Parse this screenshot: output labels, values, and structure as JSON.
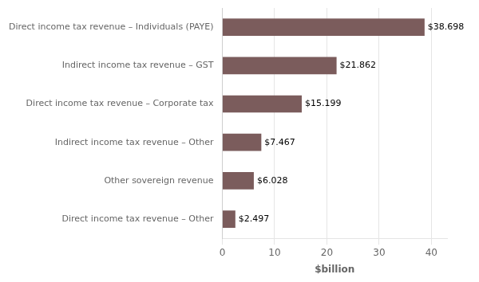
{
  "chart_data": {
    "type": "bar",
    "orientation": "horizontal",
    "categories": [
      "Direct income tax revenue – Other",
      "Other sovereign revenue",
      "Indirect income tax revenue – Other",
      "Direct income tax revenue – Corporate tax",
      "Indirect income tax revenue – GST",
      "Direct income tax revenue – Individuals (PAYE)"
    ],
    "values": [
      2.497,
      6.028,
      7.467,
      15.199,
      21.862,
      38.698
    ],
    "value_labels": [
      "$2.497",
      "$6.028",
      "$7.467",
      "$15.199",
      "$21.862",
      "$38.698"
    ],
    "data_labels": true,
    "color": "#7B5C5C",
    "x_label": "$billion",
    "xlim": [
      0,
      43
    ],
    "xticks": [
      0,
      10,
      20,
      30,
      40
    ],
    "grid": true
  }
}
